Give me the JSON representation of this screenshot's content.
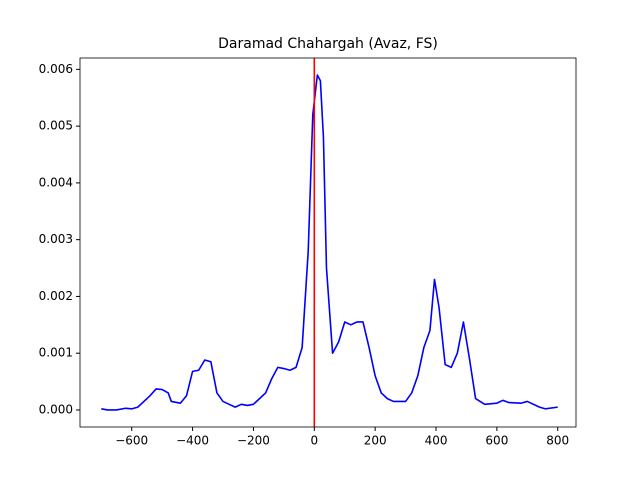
{
  "chart_data": {
    "type": "line",
    "title": "Daramad Chahargah (Avaz, FS)",
    "x": [
      -700,
      -680,
      -650,
      -620,
      -600,
      -580,
      -560,
      -540,
      -520,
      -500,
      -480,
      -470,
      -440,
      -420,
      -400,
      -380,
      -360,
      -340,
      -320,
      -300,
      -280,
      -260,
      -240,
      -220,
      -200,
      -180,
      -160,
      -140,
      -120,
      -100,
      -80,
      -60,
      -40,
      -20,
      -5,
      10,
      20,
      30,
      40,
      60,
      80,
      100,
      120,
      140,
      160,
      180,
      200,
      220,
      240,
      260,
      280,
      300,
      320,
      340,
      360,
      380,
      395,
      410,
      430,
      450,
      470,
      490,
      510,
      530,
      560,
      600,
      620,
      640,
      680,
      700,
      740,
      760,
      800
    ],
    "series": [
      {
        "color": "#0000ff",
        "values": [
          2e-05,
          0.0,
          0.0,
          3e-05,
          2e-05,
          5e-05,
          0.00015,
          0.00025,
          0.00037,
          0.00036,
          0.0003,
          0.00015,
          0.00012,
          0.00025,
          0.00068,
          0.0007,
          0.00088,
          0.00085,
          0.0003,
          0.00015,
          0.0001,
          5e-05,
          0.0001,
          8e-05,
          0.0001,
          0.0002,
          0.0003,
          0.00055,
          0.00075,
          0.00073,
          0.0007,
          0.00075,
          0.0011,
          0.0028,
          0.0052,
          0.0059,
          0.0058,
          0.0048,
          0.0025,
          0.001,
          0.0012,
          0.00155,
          0.0015,
          0.00155,
          0.00155,
          0.0011,
          0.0006,
          0.0003,
          0.0002,
          0.00015,
          0.00015,
          0.00015,
          0.0003,
          0.0006,
          0.0011,
          0.0014,
          0.0023,
          0.0018,
          0.0008,
          0.00075,
          0.001,
          0.00155,
          0.0009,
          0.0002,
          0.0001,
          0.00012,
          0.00017,
          0.00013,
          0.00012,
          0.00015,
          5e-05,
          2e-05,
          5e-05
        ]
      }
    ],
    "vlines": [
      {
        "x": 0,
        "color": "#ff0000"
      }
    ],
    "xlim": [
      -770,
      860
    ],
    "xticks": [
      {
        "value": -600,
        "label": "−600"
      },
      {
        "value": -400,
        "label": "−400"
      },
      {
        "value": -200,
        "label": "−200"
      },
      0,
      200,
      400,
      600,
      800
    ],
    "ylim": [
      -0.0003,
      0.0062
    ],
    "yticks": [
      {
        "value": 0,
        "label": "0.000"
      },
      {
        "value": 0.001,
        "label": "0.001"
      },
      {
        "value": 0.002,
        "label": "0.002"
      },
      {
        "value": 0.003,
        "label": "0.003"
      },
      {
        "value": 0.004,
        "label": "0.004"
      },
      {
        "value": 0.005,
        "label": "0.005"
      },
      {
        "value": 0.006,
        "label": "0.006"
      }
    ]
  }
}
